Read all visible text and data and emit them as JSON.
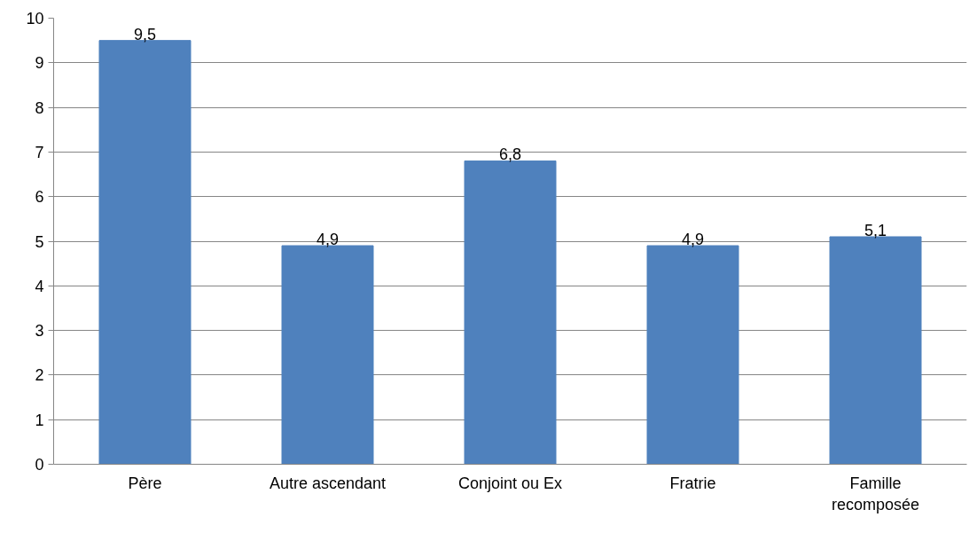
{
  "chart_data": {
    "type": "bar",
    "categories": [
      "Père",
      "Autre ascendant",
      "Conjoint ou Ex",
      "Fratrie",
      "Famille recomposée"
    ],
    "values": [
      9.5,
      4.9,
      6.8,
      4.9,
      5.1
    ],
    "color": "#4f81bd",
    "value_labels": [
      "9,5",
      "4,9",
      "6,8",
      "4,9",
      "5,1"
    ],
    "ylim": [
      0,
      10
    ],
    "yticks": [
      0,
      1,
      2,
      3,
      4,
      5,
      6,
      7,
      8,
      9,
      10
    ],
    "grid": "y"
  }
}
